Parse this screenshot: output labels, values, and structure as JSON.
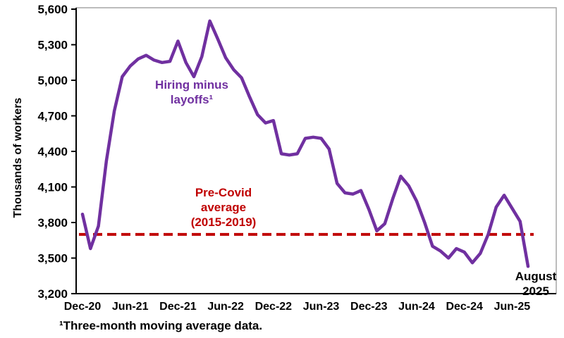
{
  "chart_data": {
    "type": "line",
    "title": "",
    "ylabel": "Thousands of workers",
    "xlabel": "",
    "ylim": [
      3200,
      5600
    ],
    "grid": false,
    "legend": "none (direct labels on chart)",
    "footnote": "¹Three-month moving average data.",
    "y_ticks": [
      {
        "value": 5600,
        "label": "5,600"
      },
      {
        "value": 5300,
        "label": "5,300"
      },
      {
        "value": 5000,
        "label": "5,000"
      },
      {
        "value": 4700,
        "label": "4,700"
      },
      {
        "value": 4400,
        "label": "4,400"
      },
      {
        "value": 4100,
        "label": "4,100"
      },
      {
        "value": 3800,
        "label": "3,800"
      },
      {
        "value": 3500,
        "label": "3,500"
      },
      {
        "value": 3200,
        "label": "3,200"
      }
    ],
    "x_ticks": [
      {
        "index": 0,
        "label": "Dec-20"
      },
      {
        "index": 6,
        "label": "Jun-21"
      },
      {
        "index": 12,
        "label": "Dec-21"
      },
      {
        "index": 18,
        "label": "Jun-22"
      },
      {
        "index": 24,
        "label": "Dec-22"
      },
      {
        "index": 30,
        "label": "Jun-23"
      },
      {
        "index": 36,
        "label": "Dec-23"
      },
      {
        "index": 42,
        "label": "Jun-24"
      },
      {
        "index": 48,
        "label": "Dec-24"
      },
      {
        "index": 54,
        "label": "Jun-25"
      }
    ],
    "x": [
      "Dec-20",
      "Jan-21",
      "Feb-21",
      "Mar-21",
      "Apr-21",
      "May-21",
      "Jun-21",
      "Jul-21",
      "Aug-21",
      "Sep-21",
      "Oct-21",
      "Nov-21",
      "Dec-21",
      "Jan-22",
      "Feb-22",
      "Mar-22",
      "Apr-22",
      "May-22",
      "Jun-22",
      "Jul-22",
      "Aug-22",
      "Sep-22",
      "Oct-22",
      "Nov-22",
      "Dec-22",
      "Jan-23",
      "Feb-23",
      "Mar-23",
      "Apr-23",
      "May-23",
      "Jun-23",
      "Jul-23",
      "Aug-23",
      "Sep-23",
      "Oct-23",
      "Nov-23",
      "Dec-23",
      "Jan-24",
      "Feb-24",
      "Mar-24",
      "Apr-24",
      "May-24",
      "Jun-24",
      "Jul-24",
      "Aug-24",
      "Sep-24",
      "Oct-24",
      "Nov-24",
      "Dec-24",
      "Jan-25",
      "Feb-25",
      "Mar-25",
      "Apr-25",
      "May-25",
      "Jun-25",
      "Jul-25",
      "Aug-25"
    ],
    "series": [
      {
        "name": "Hiring minus layoffs¹",
        "color": "#7030A0",
        "values": [
          3870,
          3580,
          3770,
          4320,
          4740,
          5030,
          5120,
          5180,
          5210,
          5170,
          5150,
          5160,
          5330,
          5150,
          5030,
          5200,
          5500,
          5350,
          5190,
          5090,
          5020,
          4860,
          4710,
          4640,
          4660,
          4380,
          4370,
          4380,
          4510,
          4520,
          4510,
          4420,
          4130,
          4050,
          4040,
          4070,
          3910,
          3730,
          3790,
          4000,
          4190,
          4110,
          3980,
          3800,
          3600,
          3560,
          3500,
          3580,
          3550,
          3460,
          3540,
          3700,
          3930,
          4030,
          3920,
          3810,
          3430
        ]
      }
    ],
    "reference_line": {
      "label": "Pre-Covid average (2015-2019)",
      "value": 3700,
      "color": "#C00000",
      "style": "dashed"
    },
    "style": {
      "axis_color": "#000000",
      "border_color": "#A6A6A6",
      "tick_color": "#000000"
    }
  },
  "annotations": {
    "series_label": "Hiring minus\nlayoffs¹",
    "series_label_color": "#7030A0",
    "reference_label": "Pre-Covid\naverage\n(2015-2019)",
    "reference_label_color": "#C00000",
    "end_label": "August\n2025"
  }
}
